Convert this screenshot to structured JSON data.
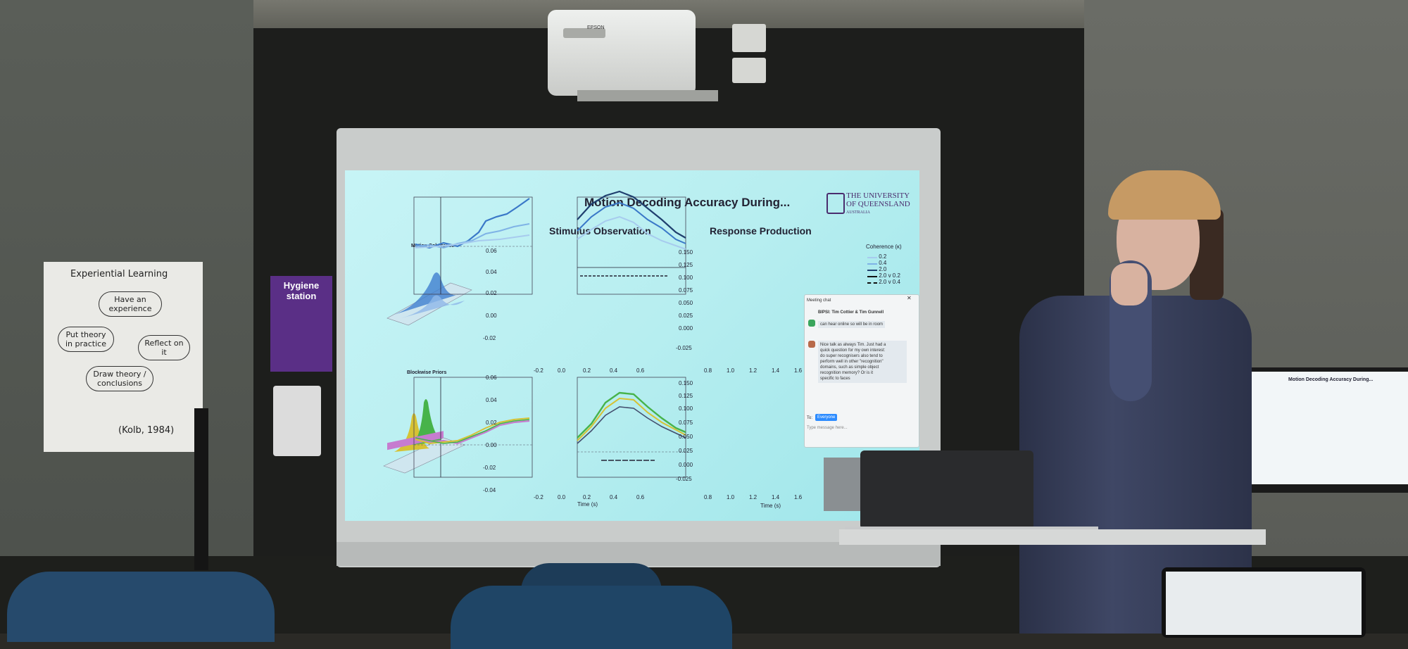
{
  "slide": {
    "title": "Motion Decoding Accuracy During...",
    "university_line1": "THE UNIVERSITY",
    "university_line2": "OF QUEENSLAND",
    "university_line3": "AUSTRALIA",
    "panel_left_title": "Stimulus Observation",
    "panel_right_title": "Response Production",
    "row1_label": "Motion Coherence",
    "row2_label": "Blockwise Priors",
    "legend_title": "Coherence (κ)",
    "legend_entries": [
      "0.2",
      "0.4",
      "2.0",
      "2.0 v 0.2",
      "2.0 v 0.4"
    ],
    "x_label": "Time (s)",
    "left_xticks": [
      "-0.2",
      "0.0",
      "0.2",
      "0.4",
      "0.6"
    ],
    "right_xticks": [
      "0.8",
      "1.0",
      "1.2",
      "1.4",
      "1.6"
    ],
    "left_top_yticks": [
      "0.06",
      "0.04",
      "0.02",
      "0.00",
      "-0.02"
    ],
    "right_top_yticks": [
      "0.150",
      "0.125",
      "0.100",
      "0.075",
      "0.050",
      "0.025",
      "0.000",
      "-0.025"
    ],
    "left_bottom_yticks": [
      "0.06",
      "0.04",
      "0.02",
      "0.00",
      "-0.02",
      "-0.04"
    ],
    "right_bottom_yticks": [
      "0.150",
      "0.125",
      "0.100",
      "0.075",
      "0.050",
      "0.025",
      "0.000",
      "-0.025"
    ]
  },
  "chat": {
    "header": "Meeting chat",
    "title": "BIPSI: Tim Cottier & Tim Gunnell",
    "msg1": "can hear online so will be in room",
    "msg2_lines": [
      "Nice talk as always Tim. Just had a",
      "quick question for my own interest:",
      "do super recognisers also tend to",
      "perform well in other \"recognition\"",
      "domains, such as simple object",
      "recognition memory? Or is it",
      "specific to faces"
    ],
    "input_placeholder": "Type message here...",
    "to_label": "To:",
    "to_value": "Everyone"
  },
  "room": {
    "poster_title": "Experiential Learning",
    "poster_items": [
      "Have an experience",
      "Reflect on it",
      "Draw theory / conclusions",
      "Put theory in practice"
    ],
    "poster_cite": "(Kolb, 1984)",
    "hygiene_line1": "Hygiene",
    "hygiene_line2": "station",
    "projector_brand": "EPSON"
  },
  "tv": {
    "title": "Motion Decoding Accuracy During..."
  },
  "colors": {
    "screen": "#b7eef0",
    "uq_purple": "#4a2d6e",
    "hygiene_purple": "#5a2f86"
  }
}
